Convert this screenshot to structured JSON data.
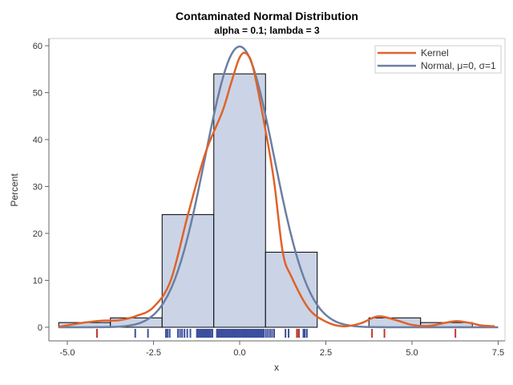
{
  "chart_data": {
    "type": "histogram",
    "title": "Contaminated Normal Distribution",
    "subtitle": "alpha = 0.1; lambda = 3",
    "xlabel": "x",
    "ylabel": "Percent",
    "xlim": [
      -5.25,
      7.5
    ],
    "ylim": [
      0,
      60
    ],
    "xticks": [
      "-5.0",
      "-2.5",
      "0.0",
      "2.5",
      "5.0",
      "7.5"
    ],
    "xtick_values": [
      -5,
      -2.5,
      0,
      2.5,
      5,
      7.5
    ],
    "yticks": [
      "0",
      "10",
      "20",
      "30",
      "40",
      "50",
      "60"
    ],
    "ytick_values": [
      0,
      10,
      20,
      30,
      40,
      50,
      60
    ],
    "bins": {
      "edges": [
        -5.25,
        -3.75,
        -2.25,
        -0.75,
        0.75,
        2.25,
        3.75,
        5.25,
        6.75
      ],
      "values": [
        1,
        2,
        24,
        54,
        16,
        0,
        2,
        1
      ]
    },
    "series": [
      {
        "name": "Kernel",
        "color": "#e0622a",
        "x": [
          -5.25,
          -4.5,
          -4,
          -3.5,
          -3,
          -2.5,
          -2,
          -1.5,
          -1,
          -0.5,
          -0.25,
          0,
          0.2,
          0.4,
          0.75,
          1,
          1.25,
          1.5,
          2,
          2.5,
          3,
          3.5,
          4,
          4.5,
          5,
          5.5,
          6,
          6.3,
          6.7,
          7,
          7.4
        ],
        "y": [
          0.1,
          1.0,
          1.4,
          1.5,
          2.4,
          4.3,
          10,
          24,
          37,
          46,
          52,
          57.5,
          58.3,
          55,
          42,
          31,
          16,
          10.8,
          4,
          1.2,
          0.2,
          0.8,
          2.3,
          1.6,
          0.5,
          0.3,
          1.0,
          1.3,
          0.9,
          0.4,
          0.2
        ]
      },
      {
        "name": "Normal, μ=0, σ=1",
        "color": "#6b7fa3",
        "distribution": "normal",
        "mu": 0,
        "sigma": 1
      }
    ],
    "rug": {
      "normal_color": "#3b4f9e",
      "contaminated_color": "#c0392b",
      "normal_values": [
        -3.03,
        -2.66,
        -2.14,
        -2.09,
        -2.03,
        -1.79,
        -1.73,
        -1.67,
        -1.6,
        -1.52,
        -1.43,
        -1.24,
        -1.2,
        -1.16,
        -1.12,
        -1.08,
        -1.04,
        -1.0,
        -0.96,
        -0.92,
        -0.88,
        -0.84,
        -0.79,
        -0.66,
        -0.62,
        -0.58,
        -0.54,
        -0.5,
        -0.46,
        -0.42,
        -0.38,
        -0.34,
        -0.3,
        -0.26,
        -0.22,
        -0.18,
        -0.14,
        -0.1,
        -0.06,
        -0.02,
        0.02,
        0.06,
        0.1,
        0.14,
        0.18,
        0.22,
        0.26,
        0.3,
        0.34,
        0.38,
        0.42,
        0.46,
        0.5,
        0.54,
        0.58,
        0.62,
        0.66,
        0.7,
        0.76,
        0.82,
        0.88,
        0.94,
        1.0,
        1.33,
        1.42,
        1.72,
        1.85,
        1.89,
        1.95
      ],
      "contaminated_values": [
        -4.14,
        1.66,
        1.71,
        3.84,
        4.2,
        6.26
      ]
    },
    "legend": {
      "position": "top-right",
      "entries": [
        "Kernel",
        "Normal, μ=0, σ=1"
      ]
    },
    "bar_fill": "#cad4e6",
    "grid": false
  }
}
